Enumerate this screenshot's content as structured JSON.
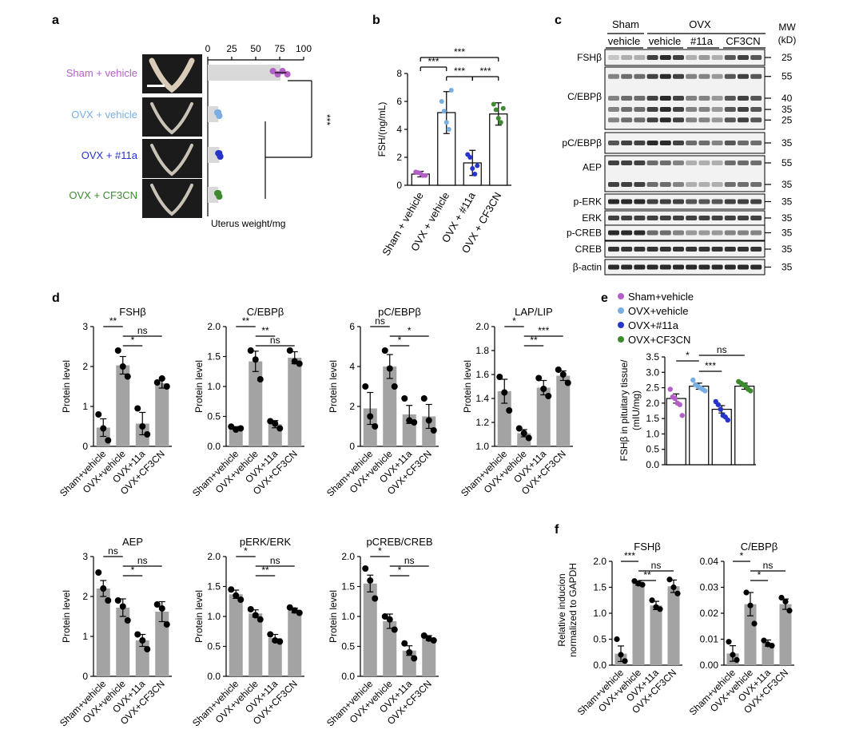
{
  "panel_letters": [
    "a",
    "b",
    "c",
    "d",
    "e",
    "f"
  ],
  "groups_long": [
    "Sham + vehicle",
    "OVX + vehicle",
    "OVX + #11a",
    "OVX + CF3CN"
  ],
  "groups_short": [
    "Sham+vehicle",
    "OVX+vehicle",
    "OVX+11a",
    "OVX+CF3CN"
  ],
  "colors": {
    "sham": "#b45fc8",
    "ovx": "#79aee3",
    "a11": "#2634c9",
    "cf": "#3d8a2e",
    "bar": "#a3a3a3",
    "bar_light": "#d9d9d9"
  },
  "panel_a": {
    "labels": [
      "Sham + vehicle",
      "OVX + vehicle",
      "OVX + #11a",
      "OVX + CF3CN"
    ],
    "xlabel": "Uterus weight/mg",
    "ticks": [
      "0",
      "25",
      "50",
      "75",
      "100"
    ],
    "sig": "***",
    "chart_data": {
      "type": "bar",
      "orientation": "horizontal",
      "categories": [
        "Sham + vehicle",
        "OVX + vehicle",
        "OVX + #11a",
        "OVX + CF3CN"
      ],
      "values": [
        76,
        11,
        12,
        11
      ],
      "xlim": [
        0,
        100
      ],
      "xlabel": "Uterus weight/mg"
    }
  },
  "panel_b": {
    "ylabel": "FSH/(ng/mL)",
    "ticks": [
      "0",
      "2",
      "4",
      "6",
      "8"
    ],
    "categories": [
      "Sham + vehicle",
      "OVX + vehicle",
      "OVX + #11a",
      "OVX + CF3CN"
    ],
    "sig": [
      "***",
      "***",
      "***",
      "***"
    ],
    "chart_data": {
      "type": "bar",
      "categories": [
        "Sham + vehicle",
        "OVX + vehicle",
        "OVX + #11a",
        "OVX + CF3CN"
      ],
      "values": [
        0.8,
        5.2,
        1.6,
        5.1
      ],
      "errors": [
        0.2,
        1.5,
        0.9,
        0.8
      ],
      "ylim": [
        0,
        8
      ],
      "ylabel": "FSH/(ng/mL)"
    }
  },
  "panel_c": {
    "header_sham": "Sham",
    "header_ovx": "OVX",
    "header_mw": "MW",
    "header_kd": "(kD)",
    "lanes": [
      "vehicle",
      "vehicle",
      "#11a",
      "CF3CN"
    ],
    "blots": [
      {
        "name": "FSHβ",
        "mw": [
          "25"
        ]
      },
      {
        "name": "C/EBPβ",
        "mw": [
          "55",
          "40",
          "35",
          "25"
        ]
      },
      {
        "name": "pC/EBPβ",
        "mw": [
          "35"
        ]
      },
      {
        "name": "AEP",
        "mw": [
          "55",
          "35"
        ]
      },
      {
        "name": "p-ERK",
        "mw": [
          "35"
        ]
      },
      {
        "name": "ERK",
        "mw": [
          "35"
        ]
      },
      {
        "name": "p-CREB",
        "mw": [
          "35"
        ]
      },
      {
        "name": "CREB",
        "mw": [
          "35"
        ]
      },
      {
        "name": "β-actin",
        "mw": [
          "35"
        ]
      }
    ]
  },
  "panel_d": {
    "ylabel": "Protein level",
    "charts": [
      {
        "title": "FSHβ",
        "ticks": [
          "0",
          "1",
          "2",
          "3"
        ],
        "ylim": [
          0,
          3
        ],
        "values": [
          0.47,
          2.03,
          0.57,
          1.58
        ],
        "errors": [
          0.22,
          0.22,
          0.28,
          0.12
        ],
        "points": [
          [
            0.8,
            0.45,
            0.15
          ],
          [
            2.4,
            2.0,
            1.75
          ],
          [
            0.95,
            0.5,
            0.3
          ],
          [
            1.6,
            1.7,
            1.5
          ]
        ],
        "sig": [
          {
            "a": 0,
            "b": 1,
            "t": "**"
          },
          {
            "a": 1,
            "b": 3,
            "t": "ns"
          },
          {
            "a": 1,
            "b": 2,
            "t": "*"
          }
        ]
      },
      {
        "title": "C/EBPβ",
        "ticks": [
          "0.0",
          "0.5",
          "1.0",
          "1.5",
          "2.0"
        ],
        "ylim": [
          0,
          2
        ],
        "values": [
          0.3,
          1.42,
          0.37,
          1.48
        ],
        "errors": [
          0.03,
          0.17,
          0.06,
          0.1
        ],
        "points": [
          [
            0.33,
            0.28,
            0.3
          ],
          [
            1.6,
            1.45,
            1.12
          ],
          [
            0.42,
            0.38,
            0.3
          ],
          [
            1.6,
            1.42,
            1.38
          ]
        ],
        "sig": [
          {
            "a": 0,
            "b": 1,
            "t": "**"
          },
          {
            "a": 1,
            "b": 2,
            "t": "**"
          },
          {
            "a": 1,
            "b": 3,
            "t": "ns"
          }
        ]
      },
      {
        "title": "pC/EBPβ",
        "ticks": [
          "0",
          "2",
          "4",
          "6"
        ],
        "ylim": [
          0,
          6
        ],
        "values": [
          1.9,
          4.0,
          1.6,
          1.5
        ],
        "errors": [
          0.8,
          0.6,
          0.45,
          0.6
        ],
        "points": [
          [
            3.0,
            1.5,
            1.0
          ],
          [
            4.8,
            3.9,
            3.0
          ],
          [
            2.4,
            1.3,
            1.2
          ],
          [
            2.4,
            1.3,
            0.8
          ]
        ],
        "sig": [
          {
            "a": 0,
            "b": 1,
            "t": "ns"
          },
          {
            "a": 1,
            "b": 3,
            "t": "*"
          },
          {
            "a": 1,
            "b": 2,
            "t": "*"
          }
        ]
      },
      {
        "title": "LAP/LIP",
        "ticks": [
          "1.0",
          "1.2",
          "1.4",
          "1.6",
          "1.8",
          "2.0"
        ],
        "ylim": [
          1,
          2
        ],
        "values": [
          1.46,
          1.11,
          1.49,
          1.59
        ],
        "errors": [
          0.1,
          0.03,
          0.06,
          0.04
        ],
        "points": [
          [
            1.58,
            1.45,
            1.3
          ],
          [
            1.15,
            1.11,
            1.07
          ],
          [
            1.57,
            1.48,
            1.42
          ],
          [
            1.64,
            1.6,
            1.53
          ]
        ],
        "sig": [
          {
            "a": 0,
            "b": 1,
            "t": "*"
          },
          {
            "a": 1,
            "b": 3,
            "t": "***"
          },
          {
            "a": 1,
            "b": 2,
            "t": "**"
          }
        ]
      },
      {
        "title": "AEP",
        "ticks": [
          "0",
          "1",
          "2",
          "3"
        ],
        "ylim": [
          0,
          3
        ],
        "values": [
          2.2,
          1.72,
          0.9,
          1.62
        ],
        "errors": [
          0.2,
          0.22,
          0.15,
          0.25
        ],
        "points": [
          [
            2.6,
            2.2,
            1.9
          ],
          [
            1.9,
            1.75,
            1.4
          ],
          [
            1.05,
            0.9,
            0.68
          ],
          [
            1.8,
            1.7,
            1.3
          ]
        ],
        "sig": [
          {
            "a": 0,
            "b": 1,
            "t": "ns"
          },
          {
            "a": 1,
            "b": 3,
            "t": "ns"
          },
          {
            "a": 1,
            "b": 2,
            "t": "*"
          }
        ]
      },
      {
        "title": "pERK/ERK",
        "ticks": [
          "0.0",
          "0.5",
          "1.0",
          "1.5",
          "2.0"
        ],
        "ylim": [
          0,
          2
        ],
        "values": [
          1.37,
          1.05,
          0.64,
          1.1
        ],
        "errors": [
          0.07,
          0.06,
          0.06,
          0.04
        ],
        "points": [
          [
            1.45,
            1.35,
            1.28
          ],
          [
            1.12,
            1.02,
            0.95
          ],
          [
            0.7,
            0.6,
            0.58
          ],
          [
            1.15,
            1.1,
            1.06
          ]
        ],
        "sig": [
          {
            "a": 0,
            "b": 1,
            "t": "*"
          },
          {
            "a": 1,
            "b": 3,
            "t": "ns"
          },
          {
            "a": 1,
            "b": 2,
            "t": "**"
          }
        ]
      },
      {
        "title": "pCREB/CREB",
        "ticks": [
          "0.0",
          "0.5",
          "1.0",
          "1.5",
          "2.0"
        ],
        "ylim": [
          0,
          2
        ],
        "values": [
          1.55,
          0.92,
          0.43,
          0.64
        ],
        "errors": [
          0.14,
          0.12,
          0.08,
          0.04
        ],
        "points": [
          [
            1.8,
            1.6,
            1.3
          ],
          [
            1.0,
            0.95,
            0.78
          ],
          [
            0.55,
            0.4,
            0.3
          ],
          [
            0.68,
            0.63,
            0.6
          ]
        ],
        "sig": [
          {
            "a": 0,
            "b": 1,
            "t": "*"
          },
          {
            "a": 1,
            "b": 3,
            "t": "ns"
          },
          {
            "a": 1,
            "b": 2,
            "t": "*"
          }
        ]
      }
    ]
  },
  "panel_e": {
    "legend": [
      "Sham+vehicle",
      "OVX+vehicle",
      "OVX+#11a",
      "OVX+CF3CN"
    ],
    "ylabel1": "FSHβ in pituitary tissue/",
    "ylabel2": "(mIU/mg)",
    "ticks": [
      "0.0",
      "0.5",
      "1.0",
      "1.5",
      "2.0",
      "2.5",
      "3.0",
      "3.5"
    ],
    "sig": [
      "*",
      "ns",
      "***"
    ],
    "chart_data": {
      "type": "bar",
      "categories": [
        "Sham+vehicle",
        "OVX+vehicle",
        "OVX+#11a",
        "OVX+CF3CN"
      ],
      "values": [
        2.15,
        2.55,
        1.8,
        2.55
      ],
      "errors": [
        0.15,
        0.1,
        0.12,
        0.1
      ],
      "ylim": [
        0,
        3.5
      ],
      "ylabel": "FSHβ in pituitary tissue/ (mIU/mg)"
    }
  },
  "panel_f": {
    "ylabel1": "Relative inducion",
    "ylabel2": "normalized to GAPDH",
    "charts": [
      {
        "title": "FSHβ",
        "ticks": [
          "0.0",
          "0.5",
          "1.0",
          "1.5",
          "2.0"
        ],
        "ylim": [
          0,
          2
        ],
        "values": [
          0.22,
          1.58,
          1.15,
          1.52
        ],
        "errors": [
          0.15,
          0.04,
          0.08,
          0.12
        ],
        "points": [
          [
            0.5,
            0.2,
            0.08
          ],
          [
            1.62,
            1.57,
            1.55
          ],
          [
            1.25,
            1.12,
            1.08
          ],
          [
            1.65,
            1.5,
            1.38
          ]
        ],
        "sig": [
          {
            "a": 0,
            "b": 1,
            "t": "***"
          },
          {
            "a": 1,
            "b": 3,
            "t": "ns"
          },
          {
            "a": 1,
            "b": 2,
            "t": "**"
          }
        ]
      },
      {
        "title": "C/EBPβ",
        "ticks": [
          "0.00",
          "0.01",
          "0.02",
          "0.03",
          "0.04"
        ],
        "ylim": [
          0,
          0.04
        ],
        "values": [
          0.0045,
          0.0235,
          0.0085,
          0.0235
        ],
        "errors": [
          0.003,
          0.0045,
          0.0012,
          0.002
        ],
        "points": [
          [
            0.009,
            0.004,
            0.002
          ],
          [
            0.028,
            0.023,
            0.016
          ],
          [
            0.0095,
            0.008,
            0.0075
          ],
          [
            0.026,
            0.0245,
            0.021
          ]
        ],
        "sig": [
          {
            "a": 0,
            "b": 1,
            "t": "*"
          },
          {
            "a": 1,
            "b": 3,
            "t": "ns"
          },
          {
            "a": 1,
            "b": 2,
            "t": "*"
          }
        ]
      }
    ]
  }
}
